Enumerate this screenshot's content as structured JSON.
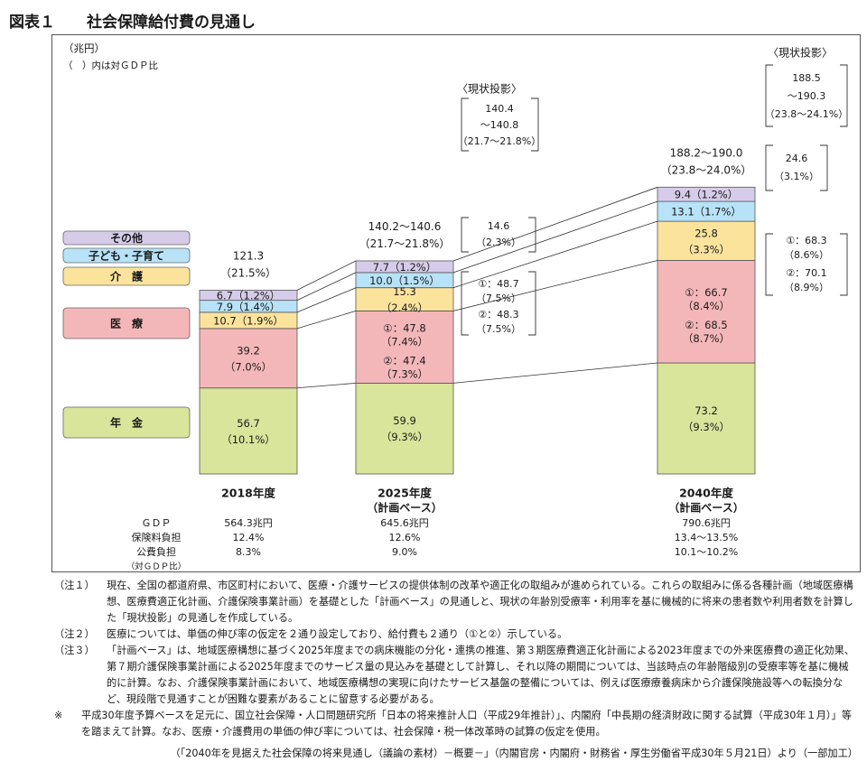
{
  "figure": {
    "number": "図表１",
    "title": "社会保障給付費の見通し"
  },
  "chart_data": {
    "type": "bar",
    "stacked": true,
    "unit_label": "（兆円）",
    "paren_note": "（　）内は対ＧＤＰ比",
    "categories": [
      "2018年度",
      "2025年度",
      "2040年度"
    ],
    "category_sublabels": [
      "",
      "（計画ベース）",
      "（計画ベース）"
    ],
    "series": [
      {
        "name": "年　金",
        "color": "#d8e59a",
        "values": [
          56.7,
          59.9,
          73.2
        ],
        "labels": [
          [
            "56.7",
            "（10.1%）"
          ],
          [
            "59.9",
            "（9.3%）"
          ],
          [
            "73.2",
            "（9.3%）"
          ]
        ]
      },
      {
        "name": "医　療",
        "color": "#f4b7b9",
        "values": [
          39.2,
          47.6,
          67.6
        ],
        "labels": [
          [
            "39.2",
            "（7.0%）"
          ],
          [
            "①：47.8",
            "（7.4%）",
            "②：47.4",
            "（7.3%）"
          ],
          [
            "①：66.7",
            "（8.4%）",
            "②：68.5",
            "（8.7%）"
          ]
        ]
      },
      {
        "name": "介　護",
        "color": "#fbe39c",
        "values": [
          10.7,
          15.3,
          25.8
        ],
        "labels": [
          [
            "10.7（1.9%）"
          ],
          [
            "15.3",
            "（2.4%）"
          ],
          [
            "25.8",
            "（3.3%）"
          ]
        ]
      },
      {
        "name": "子ども・子育て",
        "color": "#b7e2f7",
        "values": [
          7.9,
          10.0,
          13.1
        ],
        "labels": [
          [
            "7.9（1.4%）"
          ],
          [
            "10.0（1.5%）"
          ],
          [
            "13.1（1.7%）"
          ]
        ]
      },
      {
        "name": "その他",
        "color": "#d6ccea",
        "values": [
          6.7,
          7.7,
          9.4
        ],
        "labels": [
          [
            "6.7（1.2%）"
          ],
          [
            "7.7（1.2%）"
          ],
          [
            "9.4（1.2%）"
          ]
        ]
      }
    ],
    "totals": [
      [
        "121.3",
        "（21.5%）"
      ],
      [
        "140.2～140.6",
        "（21.7～21.8%）"
      ],
      [
        "188.2～190.0",
        "（23.8～24.0%）"
      ]
    ],
    "current_projection": {
      "header": "〈現状投影〉",
      "columns": [
        {
          "total": [
            "140.4",
            "～140.8",
            "（21.7～21.8%）"
          ],
          "kaigo": [
            "14.6",
            "（2.3%）"
          ],
          "iryo": [
            "①：48.7",
            "（7.5%）",
            "②：48.3",
            "（7.5%）"
          ]
        },
        {
          "total": [
            "188.5",
            "～190.3",
            "（23.8～24.1%）"
          ],
          "kaigo": [
            "24.6",
            "（3.1%）"
          ],
          "iryo": [
            "①：68.3",
            "（8.6%）",
            "②：70.1",
            "（8.9%）"
          ]
        }
      ]
    },
    "indicator_table": {
      "row_labels": [
        "ＧＤＰ",
        "保険料負担",
        "公費負担",
        "（対ＧＤＰ比）"
      ],
      "columns": [
        [
          "564.3兆円",
          "12.4%",
          "8.3%"
        ],
        [
          "645.6兆円",
          "12.6%",
          "9.0%"
        ],
        [
          "790.6兆円",
          "13.4～13.5%",
          "10.1～10.2%"
        ]
      ]
    }
  },
  "notes": [
    {
      "label": "（注１）",
      "text": "現在、全国の都道府県、市区町村において、医療・介護サービスの提供体制の改革や適正化の取組みが進められている。これらの取組みに係る各種計画（地域医療構想、医療費適正化計画、介護保険事業計画）を基礎とした「計画ベース」の見通しと、現状の年齢別受療率・利用率を基に機械的に将来の患者数や利用者数を計算した「現状投影」の見通しを作成している。"
    },
    {
      "label": "（注２）",
      "text": "医療については、単価の伸び率の仮定を２通り設定しており、給付費も２通り（①と②）示している。"
    },
    {
      "label": "（注３）",
      "text": "「計画ベース」は、地域医療構想に基づく2025年度までの病床機能の分化・連携の推進、第３期医療費適正化計画による2023年度までの外来医療費の適正化効果、第７期介護保険事業計画による2025年度までのサービス量の見込みを基礎として計算し、それ以降の期間については、当該時点の年齢階級別の受療率等を基に機械的に計算。なお、介護保険事業計画において、地域医療構想の実現に向けたサービス基盤の整備については、例えば医療療養病床から介護保険施設等への転換分など、現段階で見通すことが困難な要素があることに留意する必要がある。"
    },
    {
      "label": "※",
      "text": "平成30年度予算ベースを足元に、国立社会保障・人口問題研究所「日本の将来推計人口（平成29年推計）」、内閣府「中長期の経済財政に関する試算（平成30年１月）」等を踏まえて計算。なお、医療・介護費用の単価の伸び率については、社会保障・税一体改革時の試算の仮定を使用。"
    }
  ],
  "source": "（「2040年を見据えた社会保障の将来見通し（議論の素材）－概要－」（内閣官房・内閣府・財務省・厚生労働省平成30年５月21日）より（一部加工）"
}
